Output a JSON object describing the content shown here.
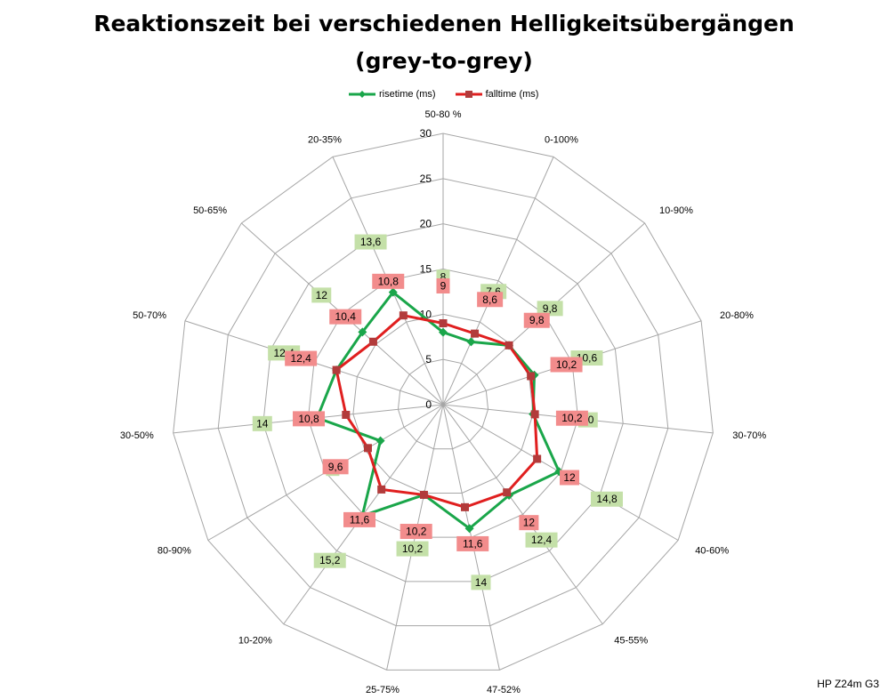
{
  "title_line1": "Reaktionszeit bei verschiedenen Helligkeitsübergängen",
  "title_line2": "(grey-to-grey)",
  "footer": "HP Z24m G3",
  "chart_data": {
    "type": "radar",
    "categories": [
      "50-80 %",
      "0-100%",
      "10-90%",
      "20-80%",
      "30-70%",
      "40-60%",
      "45-55%",
      "47-52%",
      "25-75%",
      "10-20%",
      "80-90%",
      "30-50%",
      "50-70%",
      "50-65%",
      "20-35%"
    ],
    "ticks": [
      0,
      5,
      10,
      15,
      20,
      25,
      30
    ],
    "range": [
      0,
      30
    ],
    "legend_position": "top",
    "series": [
      {
        "name": "risetime (ms)",
        "color": "#1aa64a",
        "marker": "diamond",
        "label_bg": "#c4e0a8",
        "values": [
          8,
          7.6,
          9.8,
          10.6,
          10,
          14.8,
          12.4,
          14,
          10.2,
          15.2,
          8,
          14,
          12.4,
          12,
          13.6
        ],
        "labels": [
          "8",
          "7,6",
          "9,8",
          "10,6",
          "10",
          "14,8",
          "12,4",
          "14",
          "10,2",
          "15,2",
          "8",
          "14",
          "12,4",
          "12",
          "13,6"
        ]
      },
      {
        "name": "falltime (ms)",
        "color": "#e01f1f",
        "marker": "square",
        "label_bg": "#f28c8c",
        "values": [
          9,
          8.6,
          9.8,
          10.2,
          10.2,
          12,
          12,
          11.6,
          10.2,
          11.6,
          9.6,
          10.8,
          12.4,
          10.4,
          10.8
        ],
        "labels": [
          "9",
          "8,6",
          "9,8",
          "10,2",
          "10,2",
          "12",
          "12",
          "11,6",
          "10,2",
          "11,6",
          "9,6",
          "10,8",
          "12,4",
          "10,4",
          "10,8"
        ]
      }
    ]
  }
}
